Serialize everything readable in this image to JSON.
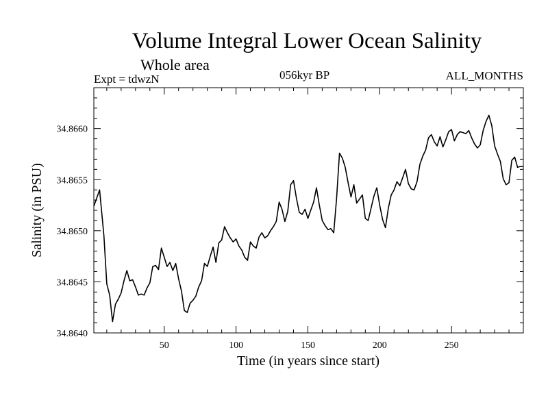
{
  "chart_data": {
    "type": "line",
    "title": "Volume Integral Lower Ocean Salinity",
    "subtitle": "Whole area",
    "experiment": "Expt = tdwzN",
    "period": "056kyr BP",
    "months": "ALL_MONTHS",
    "xlabel": "Time (in years since start)",
    "ylabel": "Salinity (in PSU)",
    "xlim": [
      1,
      300
    ],
    "ylim": [
      34.864,
      34.8664
    ],
    "xticks": [
      50,
      100,
      150,
      200,
      250
    ],
    "yticks": [
      "34.8640",
      "34.8645",
      "34.8650",
      "34.8655",
      "34.8660"
    ],
    "grid": false,
    "line_color": "#000000",
    "series": [
      {
        "x": [
          1,
          3,
          5,
          6,
          8,
          10,
          12,
          14,
          16,
          18,
          20,
          22,
          24,
          26,
          28,
          30,
          32,
          34,
          36,
          38,
          40,
          42,
          44,
          46,
          48,
          50,
          52,
          54,
          56,
          58,
          60,
          62,
          64,
          66,
          68,
          70,
          72,
          74,
          76,
          78,
          80,
          82,
          84,
          86,
          88,
          90,
          92,
          94,
          96,
          98,
          100,
          102,
          104,
          106,
          108,
          110,
          112,
          114,
          116,
          118,
          120,
          122,
          124,
          126,
          128,
          130,
          132,
          134,
          136,
          138,
          140,
          142,
          144,
          146,
          148,
          150,
          152,
          154,
          156,
          158,
          160,
          162,
          164,
          166,
          168,
          170,
          172,
          174,
          176,
          178,
          180,
          182,
          184,
          186,
          188,
          190,
          192,
          194,
          196,
          198,
          200,
          202,
          204,
          206,
          208,
          210,
          212,
          214,
          216,
          218,
          220,
          222,
          224,
          226,
          228,
          230,
          232,
          234,
          236,
          238,
          240,
          242,
          244,
          246,
          248,
          250,
          252,
          254,
          256,
          258,
          260,
          262,
          264,
          266,
          268,
          270,
          272,
          274,
          276,
          278,
          280,
          282,
          284,
          286,
          288,
          290,
          292,
          294,
          296,
          298,
          300
        ],
        "y": [
          34.86524,
          34.86532,
          34.8654,
          34.86525,
          34.86495,
          34.86448,
          34.86437,
          34.86411,
          34.86428,
          34.86433,
          34.86439,
          34.86451,
          34.86461,
          34.86451,
          34.86452,
          34.86445,
          34.86437,
          34.86438,
          34.86437,
          34.86444,
          34.86449,
          34.86465,
          34.86466,
          34.86462,
          34.86483,
          34.86474,
          34.86465,
          34.86469,
          34.86461,
          34.86468,
          34.86453,
          34.86441,
          34.86422,
          34.8642,
          34.86429,
          34.86432,
          34.86436,
          34.86445,
          34.86451,
          34.86468,
          34.86465,
          34.86475,
          34.86484,
          34.86469,
          34.86488,
          34.86491,
          34.86504,
          34.86498,
          34.86493,
          34.86489,
          34.86492,
          34.86485,
          34.86481,
          34.86474,
          34.86471,
          34.86489,
          34.86485,
          34.86483,
          34.86494,
          34.86498,
          34.86493,
          34.86495,
          34.865,
          34.86504,
          34.86509,
          34.86528,
          34.86521,
          34.86509,
          34.86519,
          34.86545,
          34.86549,
          34.86532,
          34.86518,
          34.86516,
          34.86521,
          34.86512,
          34.8652,
          34.86528,
          34.86542,
          34.86525,
          34.8651,
          34.86505,
          34.86501,
          34.86502,
          34.86498,
          34.86532,
          34.86576,
          34.86571,
          34.86562,
          34.86547,
          34.86533,
          34.86545,
          34.86527,
          34.86531,
          34.86535,
          34.86512,
          34.8651,
          34.86522,
          34.86534,
          34.86542,
          34.86525,
          34.86511,
          34.86503,
          34.86522,
          34.86535,
          34.8654,
          34.86548,
          34.86544,
          34.86552,
          34.8656,
          34.86546,
          34.86541,
          34.8654,
          34.86548,
          34.86565,
          34.86573,
          34.86579,
          34.86591,
          34.86594,
          34.86587,
          34.86583,
          34.86592,
          34.86582,
          34.86589,
          34.86597,
          34.86599,
          34.86588,
          34.86594,
          34.86597,
          34.86596,
          34.86595,
          34.86598,
          34.86591,
          34.86585,
          34.86581,
          34.86584,
          34.86598,
          34.86607,
          34.86613,
          34.86603,
          34.86583,
          34.86575,
          34.86568,
          34.86551,
          34.86545,
          34.86547,
          34.86569,
          34.86572,
          34.86562,
          34.86563,
          34.86563
        ]
      }
    ]
  }
}
